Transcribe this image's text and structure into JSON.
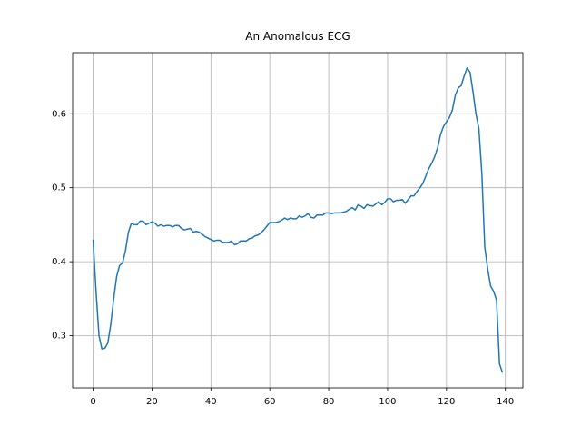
{
  "chart_data": {
    "type": "line",
    "title": "An Anomalous ECG",
    "x": [
      0,
      1,
      2,
      3,
      4,
      5,
      6,
      7,
      8,
      9,
      10,
      11,
      12,
      13,
      14,
      15,
      16,
      17,
      18,
      19,
      20,
      21,
      22,
      23,
      24,
      25,
      26,
      27,
      28,
      29,
      30,
      31,
      32,
      33,
      34,
      35,
      36,
      37,
      38,
      39,
      40,
      41,
      42,
      43,
      44,
      45,
      46,
      47,
      48,
      49,
      50,
      51,
      52,
      53,
      54,
      55,
      56,
      57,
      58,
      59,
      60,
      61,
      62,
      63,
      64,
      65,
      66,
      67,
      68,
      69,
      70,
      71,
      72,
      73,
      74,
      75,
      76,
      77,
      78,
      79,
      80,
      81,
      82,
      83,
      84,
      85,
      86,
      87,
      88,
      89,
      90,
      91,
      92,
      93,
      94,
      95,
      96,
      97,
      98,
      99,
      100,
      101,
      102,
      103,
      104,
      105,
      106,
      107,
      108,
      109,
      110,
      111,
      112,
      113,
      114,
      115,
      116,
      117,
      118,
      119,
      120,
      121,
      122,
      123,
      124,
      125,
      126,
      127,
      128,
      129,
      130,
      131,
      132,
      133,
      134,
      135,
      136,
      137,
      138,
      139
    ],
    "values": [
      0.43,
      0.36,
      0.3,
      0.282,
      0.283,
      0.29,
      0.315,
      0.35,
      0.38,
      0.395,
      0.398,
      0.415,
      0.44,
      0.452,
      0.45,
      0.45,
      0.455,
      0.455,
      0.45,
      0.452,
      0.454,
      0.452,
      0.448,
      0.45,
      0.448,
      0.449,
      0.449,
      0.447,
      0.449,
      0.449,
      0.445,
      0.443,
      0.444,
      0.445,
      0.44,
      0.441,
      0.44,
      0.437,
      0.434,
      0.432,
      0.43,
      0.428,
      0.429,
      0.429,
      0.426,
      0.426,
      0.426,
      0.428,
      0.423,
      0.424,
      0.428,
      0.428,
      0.428,
      0.431,
      0.432,
      0.435,
      0.436,
      0.439,
      0.443,
      0.448,
      0.453,
      0.453,
      0.453,
      0.454,
      0.456,
      0.459,
      0.457,
      0.459,
      0.458,
      0.458,
      0.462,
      0.46,
      0.462,
      0.465,
      0.46,
      0.459,
      0.463,
      0.463,
      0.463,
      0.466,
      0.466,
      0.465,
      0.466,
      0.466,
      0.466,
      0.467,
      0.468,
      0.471,
      0.473,
      0.47,
      0.477,
      0.475,
      0.472,
      0.477,
      0.476,
      0.475,
      0.478,
      0.481,
      0.477,
      0.48,
      0.485,
      0.485,
      0.481,
      0.483,
      0.483,
      0.484,
      0.479,
      0.484,
      0.489,
      0.489,
      0.495,
      0.5,
      0.506,
      0.516,
      0.526,
      0.533,
      0.542,
      0.554,
      0.572,
      0.583,
      0.589,
      0.595,
      0.605,
      0.625,
      0.635,
      0.638,
      0.651,
      0.662,
      0.656,
      0.63,
      0.6,
      0.58,
      0.52,
      0.42,
      0.39,
      0.367,
      0.36,
      0.348,
      0.262,
      0.25
    ],
    "color": "#1f77b4",
    "xlim": [
      -6.95,
      145.95
    ],
    "xticks": [
      0,
      20,
      40,
      60,
      80,
      100,
      120,
      140
    ],
    "ylim": [
      0.2294,
      0.6826
    ],
    "yticks": [
      0.3,
      0.4,
      0.5,
      0.6
    ],
    "grid": true
  }
}
